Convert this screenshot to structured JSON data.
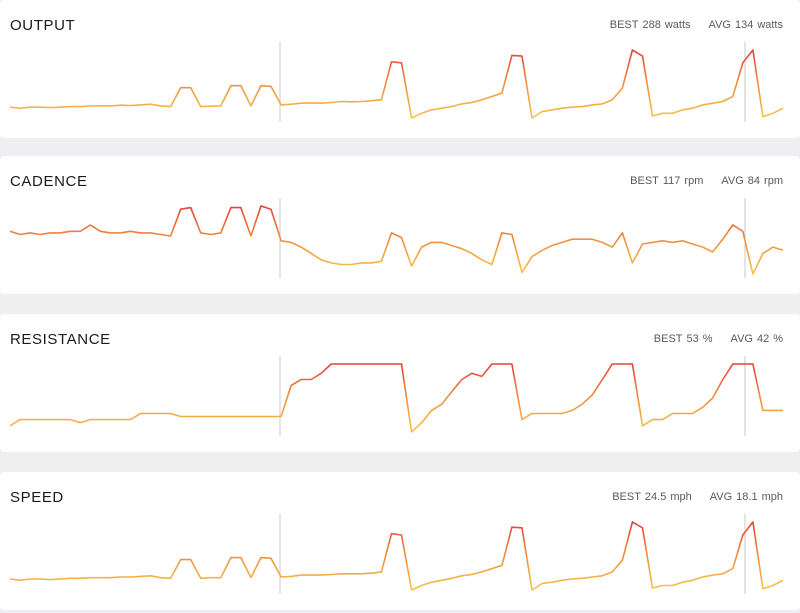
{
  "panels": [
    {
      "title": "OUTPUT",
      "best": {
        "label": "BEST",
        "value": 288,
        "unit": "watts"
      },
      "avg": {
        "label": "AVG",
        "value": 134,
        "unit": "watts"
      },
      "values": [
        118,
        115,
        118,
        118,
        117,
        118,
        120,
        120,
        122,
        122,
        122,
        124,
        123,
        125,
        127,
        122,
        120,
        176,
        176,
        120,
        121,
        122,
        182,
        182,
        122,
        182,
        180,
        125,
        127,
        130,
        131,
        130,
        132,
        135,
        134,
        135,
        137,
        140,
        253,
        250,
        86,
        100,
        110,
        115,
        120,
        128,
        132,
        140,
        150,
        160,
        272,
        270,
        86,
        105,
        110,
        115,
        118,
        120,
        125,
        128,
        140,
        175,
        288,
        270,
        92,
        100,
        100,
        110,
        115,
        125,
        130,
        135,
        150,
        250,
        288,
        90,
        100,
        115
      ]
    },
    {
      "title": "CADENCE",
      "best": {
        "label": "BEST",
        "value": 117,
        "unit": "rpm"
      },
      "avg": {
        "label": "AVG",
        "value": 84,
        "unit": "rpm"
      },
      "values": [
        100,
        98,
        99,
        98,
        99,
        99,
        100,
        100,
        104,
        100,
        99,
        99,
        100,
        99,
        99,
        98,
        97,
        114,
        115,
        99,
        98,
        99,
        115,
        115,
        97,
        116,
        114,
        94,
        93,
        90,
        86,
        82,
        80,
        79,
        79,
        80,
        80,
        81,
        99,
        96,
        78,
        90,
        93,
        93,
        91,
        89,
        86,
        82,
        79,
        99,
        98,
        74,
        84,
        88,
        91,
        93,
        95,
        95,
        95,
        93,
        90,
        99,
        80,
        92,
        93,
        94,
        93,
        94,
        92,
        90,
        87,
        95,
        104,
        100,
        73,
        86,
        90,
        88
      ]
    },
    {
      "title": "RESISTANCE",
      "best": {
        "label": "BEST",
        "value": 53,
        "unit": "%"
      },
      "avg": {
        "label": "AVG",
        "value": 42,
        "unit": "%"
      },
      "values": [
        33,
        35,
        35,
        35,
        35,
        35,
        35,
        34,
        35,
        35,
        35,
        35,
        35,
        37,
        37,
        37,
        37,
        36,
        36,
        36,
        36,
        36,
        36,
        36,
        36,
        36,
        36,
        36,
        46,
        48,
        48,
        50,
        53,
        53,
        53,
        53,
        53,
        53,
        53,
        53,
        31,
        34,
        38,
        40,
        44,
        48,
        50,
        49,
        53,
        53,
        53,
        35,
        37,
        37,
        37,
        37,
        38,
        40,
        43,
        48,
        53,
        53,
        53,
        33,
        35,
        35,
        37,
        37,
        37,
        39,
        42,
        48,
        53,
        53,
        53,
        38,
        38,
        38
      ]
    },
    {
      "title": "SPEED",
      "best": {
        "label": "BEST",
        "value": 24.5,
        "unit": "mph"
      },
      "avg": {
        "label": "AVG",
        "value": 18.1,
        "unit": "mph"
      },
      "values": [
        15.7,
        15.5,
        15.7,
        15.7,
        15.6,
        15.7,
        15.8,
        15.8,
        15.9,
        15.9,
        15.9,
        16.0,
        16.0,
        16.1,
        16.2,
        15.9,
        15.8,
        18.7,
        18.7,
        15.8,
        15.9,
        15.9,
        19.0,
        19.0,
        15.9,
        19.0,
        18.9,
        16.0,
        16.1,
        16.3,
        16.3,
        16.3,
        16.4,
        16.5,
        16.5,
        16.5,
        16.6,
        16.8,
        22.7,
        22.5,
        14.0,
        14.7,
        15.2,
        15.5,
        15.8,
        16.2,
        16.4,
        16.8,
        17.3,
        17.8,
        23.7,
        23.6,
        14.0,
        15.0,
        15.2,
        15.5,
        15.7,
        15.8,
        16.0,
        16.2,
        16.8,
        18.6,
        24.5,
        23.6,
        14.3,
        14.7,
        14.7,
        15.2,
        15.5,
        16.0,
        16.3,
        16.5,
        17.3,
        22.5,
        24.5,
        14.2,
        14.7,
        15.5
      ]
    }
  ]
}
